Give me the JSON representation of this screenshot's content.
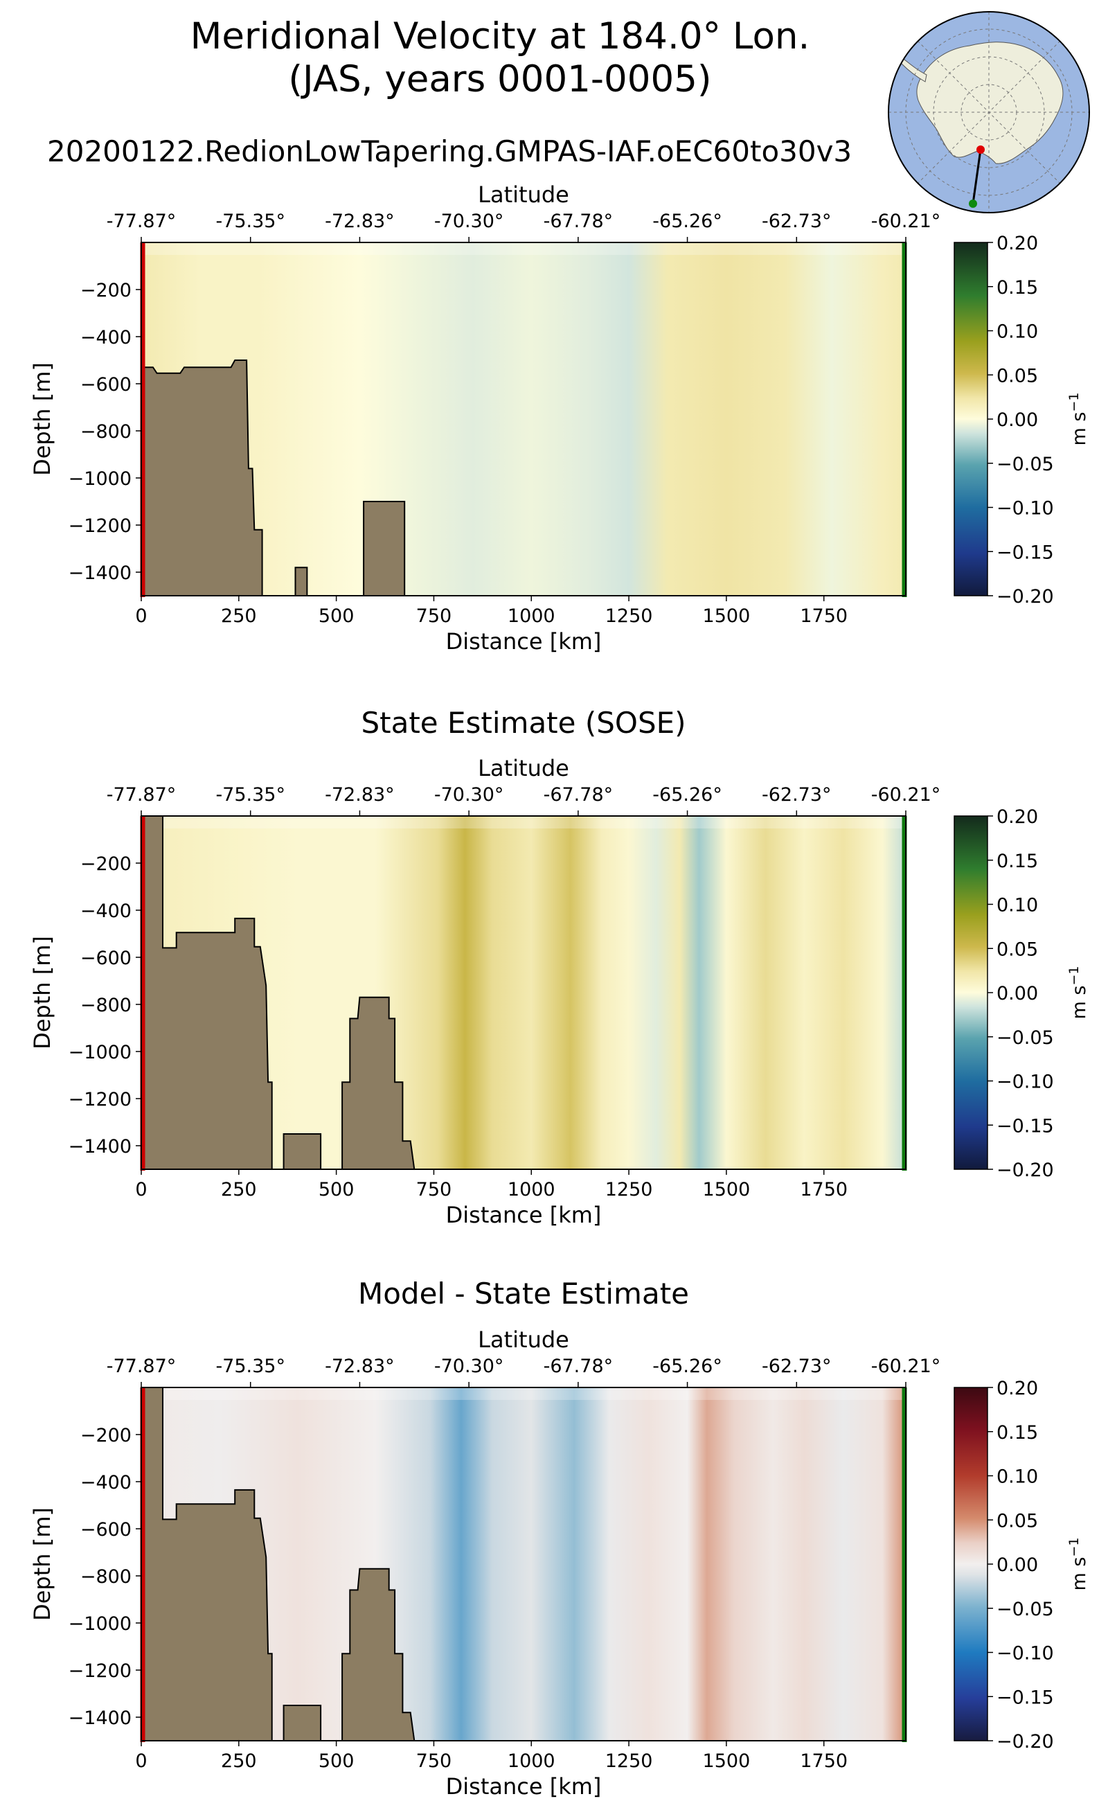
{
  "figure": {
    "title_line1": "Meridional Velocity at 184.0° Lon.",
    "title_line2": "(JAS, years 0001-0005)",
    "run_name": "20200122.RedionLowTapering.GMPAS-IAF.oEC60to30v3"
  },
  "inset_map": {
    "projection": "south-polar stereographic",
    "start_marker": "red",
    "end_marker": "green"
  },
  "colors": {
    "land": "#8c7d62",
    "start_line": "#cc0000",
    "end_line": "#0f7a0f",
    "ocean_map": "#9cb7e2",
    "land_map": "#eeeedc"
  },
  "chart_data": [
    {
      "type": "heatmap",
      "title": "",
      "xlabel": "Distance [km]",
      "ylabel": "Depth [m]",
      "top_xlabel": "Latitude",
      "xlim": [
        0,
        1960
      ],
      "ylim": [
        -1500,
        0
      ],
      "xticks": [
        "0",
        "250",
        "500",
        "750",
        "1000",
        "1250",
        "1500",
        "1750"
      ],
      "yticks": [
        "−200",
        "−400",
        "−600",
        "−800",
        "−1000",
        "−1200",
        "−1400"
      ],
      "latitude_ticks": [
        "-77.87°",
        "-75.35°",
        "-72.83°",
        "-70.30°",
        "-67.78°",
        "-65.26°",
        "-62.73°",
        "-60.21°"
      ],
      "colorbar": {
        "label": "m s",
        "label_exp": "−1",
        "colormap": "delta",
        "ticks": [
          "0.20",
          "0.15",
          "0.10",
          "0.05",
          "0.00",
          "−0.05",
          "−0.10",
          "−0.15",
          "−0.20"
        ]
      },
      "value_columns": [
        {
          "x": 0,
          "v": 0.02
        },
        {
          "x": 150,
          "v": 0.01
        },
        {
          "x": 300,
          "v": 0.01
        },
        {
          "x": 420,
          "v": 0.005
        },
        {
          "x": 560,
          "v": 0.0
        },
        {
          "x": 700,
          "v": -0.005
        },
        {
          "x": 850,
          "v": -0.01
        },
        {
          "x": 1000,
          "v": -0.005
        },
        {
          "x": 1150,
          "v": -0.01
        },
        {
          "x": 1250,
          "v": -0.015
        },
        {
          "x": 1350,
          "v": 0.02
        },
        {
          "x": 1500,
          "v": 0.025
        },
        {
          "x": 1650,
          "v": 0.02
        },
        {
          "x": 1770,
          "v": -0.005
        },
        {
          "x": 1900,
          "v": 0.015
        },
        {
          "x": 1960,
          "v": 0.02
        }
      ],
      "bathymetry": [
        [
          0,
          0
        ],
        [
          0,
          -530
        ],
        [
          30,
          -530
        ],
        [
          40,
          -555
        ],
        [
          100,
          -555
        ],
        [
          110,
          -530
        ],
        [
          230,
          -530
        ],
        [
          240,
          -500
        ],
        [
          270,
          -500
        ],
        [
          275,
          -960
        ],
        [
          285,
          -960
        ],
        [
          290,
          -1220
        ],
        [
          310,
          -1220
        ],
        [
          310,
          -1500
        ],
        [
          395,
          -1500
        ],
        [
          395,
          -1380
        ],
        [
          425,
          -1380
        ],
        [
          425,
          -1500
        ],
        [
          570,
          -1500
        ],
        [
          570,
          -1100
        ],
        [
          675,
          -1100
        ],
        [
          675,
          -1500
        ],
        [
          0,
          -1500
        ]
      ]
    },
    {
      "type": "heatmap",
      "title": "State Estimate (SOSE)",
      "xlabel": "Distance [km]",
      "ylabel": "Depth [m]",
      "top_xlabel": "Latitude",
      "xlim": [
        0,
        1960
      ],
      "ylim": [
        -1500,
        0
      ],
      "xticks": [
        "0",
        "250",
        "500",
        "750",
        "1000",
        "1250",
        "1500",
        "1750"
      ],
      "yticks": [
        "−200",
        "−400",
        "−600",
        "−800",
        "−1000",
        "−1200",
        "−1400"
      ],
      "latitude_ticks": [
        "-77.87°",
        "-75.35°",
        "-72.83°",
        "-70.30°",
        "-67.78°",
        "-65.26°",
        "-62.73°",
        "-60.21°"
      ],
      "colorbar": {
        "label": "m s",
        "label_exp": "−1",
        "colormap": "delta",
        "ticks": [
          "0.20",
          "0.15",
          "0.10",
          "0.05",
          "0.00",
          "−0.05",
          "−0.10",
          "−0.15",
          "−0.20"
        ]
      },
      "value_columns": [
        {
          "x": 0,
          "v": 0.015
        },
        {
          "x": 200,
          "v": 0.01
        },
        {
          "x": 400,
          "v": 0.005
        },
        {
          "x": 600,
          "v": 0.005
        },
        {
          "x": 760,
          "v": 0.03
        },
        {
          "x": 830,
          "v": 0.055
        },
        {
          "x": 900,
          "v": 0.03
        },
        {
          "x": 1000,
          "v": 0.02
        },
        {
          "x": 1100,
          "v": 0.045
        },
        {
          "x": 1180,
          "v": 0.015
        },
        {
          "x": 1250,
          "v": 0.005
        },
        {
          "x": 1320,
          "v": -0.01
        },
        {
          "x": 1380,
          "v": 0.02
        },
        {
          "x": 1430,
          "v": -0.03
        },
        {
          "x": 1500,
          "v": 0.005
        },
        {
          "x": 1600,
          "v": 0.03
        },
        {
          "x": 1700,
          "v": 0.01
        },
        {
          "x": 1800,
          "v": 0.025
        },
        {
          "x": 1900,
          "v": 0.005
        },
        {
          "x": 1960,
          "v": -0.02
        }
      ],
      "bathymetry": [
        [
          0,
          0
        ],
        [
          55,
          0
        ],
        [
          55,
          -560
        ],
        [
          90,
          -560
        ],
        [
          90,
          -495
        ],
        [
          240,
          -495
        ],
        [
          240,
          -435
        ],
        [
          290,
          -435
        ],
        [
          290,
          -555
        ],
        [
          305,
          -555
        ],
        [
          320,
          -720
        ],
        [
          325,
          -1130
        ],
        [
          335,
          -1130
        ],
        [
          335,
          -1500
        ],
        [
          365,
          -1500
        ],
        [
          365,
          -1350
        ],
        [
          460,
          -1350
        ],
        [
          460,
          -1500
        ],
        [
          515,
          -1500
        ],
        [
          515,
          -1130
        ],
        [
          535,
          -1130
        ],
        [
          535,
          -860
        ],
        [
          555,
          -860
        ],
        [
          560,
          -770
        ],
        [
          635,
          -770
        ],
        [
          635,
          -860
        ],
        [
          650,
          -860
        ],
        [
          650,
          -1130
        ],
        [
          670,
          -1130
        ],
        [
          670,
          -1380
        ],
        [
          690,
          -1380
        ],
        [
          700,
          -1500
        ],
        [
          0,
          -1500
        ]
      ]
    },
    {
      "type": "heatmap",
      "title": "Model - State Estimate",
      "xlabel": "Distance [km]",
      "ylabel": "Depth [m]",
      "top_xlabel": "Latitude",
      "xlim": [
        0,
        1960
      ],
      "ylim": [
        -1500,
        0
      ],
      "xticks": [
        "0",
        "250",
        "500",
        "750",
        "1000",
        "1250",
        "1500",
        "1750"
      ],
      "yticks": [
        "−200",
        "−400",
        "−600",
        "−800",
        "−1000",
        "−1200",
        "−1400"
      ],
      "latitude_ticks": [
        "-77.87°",
        "-75.35°",
        "-72.83°",
        "-70.30°",
        "-67.78°",
        "-65.26°",
        "-62.73°",
        "-60.21°"
      ],
      "colorbar": {
        "label": "m s",
        "label_exp": "−1",
        "colormap": "balance",
        "ticks": [
          "0.20",
          "0.15",
          "0.10",
          "0.05",
          "0.00",
          "−0.05",
          "−0.10",
          "−0.15",
          "−0.20"
        ]
      },
      "value_columns": [
        {
          "x": 0,
          "v": 0.005
        },
        {
          "x": 200,
          "v": -0.002
        },
        {
          "x": 400,
          "v": 0.01
        },
        {
          "x": 600,
          "v": 0.0
        },
        {
          "x": 740,
          "v": -0.02
        },
        {
          "x": 820,
          "v": -0.06
        },
        {
          "x": 900,
          "v": -0.02
        },
        {
          "x": 1000,
          "v": -0.01
        },
        {
          "x": 1110,
          "v": -0.04
        },
        {
          "x": 1200,
          "v": -0.005
        },
        {
          "x": 1300,
          "v": 0.01
        },
        {
          "x": 1400,
          "v": 0.0
        },
        {
          "x": 1450,
          "v": 0.04
        },
        {
          "x": 1520,
          "v": 0.02
        },
        {
          "x": 1620,
          "v": 0.005
        },
        {
          "x": 1700,
          "v": 0.015
        },
        {
          "x": 1800,
          "v": -0.005
        },
        {
          "x": 1900,
          "v": 0.01
        },
        {
          "x": 1960,
          "v": 0.05
        }
      ],
      "bathymetry": [
        [
          0,
          0
        ],
        [
          55,
          0
        ],
        [
          55,
          -560
        ],
        [
          90,
          -560
        ],
        [
          90,
          -495
        ],
        [
          240,
          -495
        ],
        [
          240,
          -435
        ],
        [
          290,
          -435
        ],
        [
          290,
          -555
        ],
        [
          305,
          -555
        ],
        [
          320,
          -720
        ],
        [
          325,
          -1130
        ],
        [
          335,
          -1130
        ],
        [
          335,
          -1500
        ],
        [
          365,
          -1500
        ],
        [
          365,
          -1350
        ],
        [
          460,
          -1350
        ],
        [
          460,
          -1500
        ],
        [
          515,
          -1500
        ],
        [
          515,
          -1130
        ],
        [
          535,
          -1130
        ],
        [
          535,
          -860
        ],
        [
          555,
          -860
        ],
        [
          560,
          -770
        ],
        [
          635,
          -770
        ],
        [
          635,
          -860
        ],
        [
          650,
          -860
        ],
        [
          650,
          -1130
        ],
        [
          670,
          -1130
        ],
        [
          670,
          -1380
        ],
        [
          690,
          -1380
        ],
        [
          700,
          -1500
        ],
        [
          0,
          -1500
        ]
      ]
    }
  ]
}
